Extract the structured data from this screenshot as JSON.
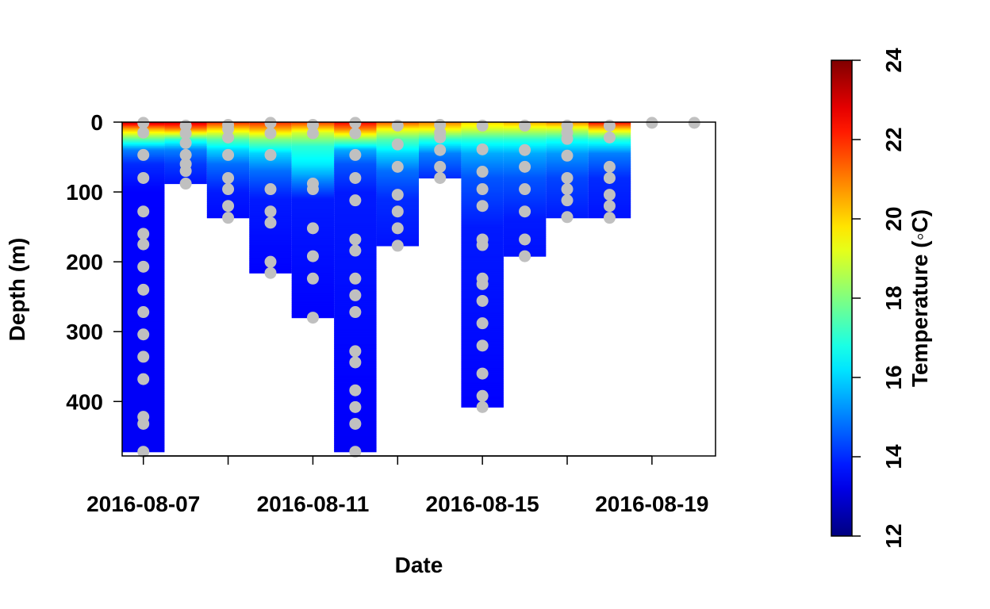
{
  "chart_data": {
    "type": "heatmap",
    "title": "",
    "xlabel": "Date",
    "ylabel": "Depth (m)",
    "x_ticks": [
      "2016-08-07",
      "2016-08-11",
      "2016-08-15",
      "2016-08-19"
    ],
    "y_ticks": [
      "0",
      "100",
      "200",
      "300",
      "400"
    ],
    "colorbar": {
      "label": "Temperature (◦C)",
      "ticks": [
        "12",
        "14",
        "16",
        "18",
        "20",
        "22",
        "24"
      ],
      "range": [
        12,
        24
      ],
      "colormap": "jet"
    },
    "xlim": [
      "2016-08-06.5",
      "2016-08-20.5"
    ],
    "ylim": [
      0,
      478
    ],
    "columns": [
      {
        "date": "2016-08-07",
        "max_depth": 472,
        "temp_profile": [
          [
            0,
            23.2
          ],
          [
            10,
            20.5
          ],
          [
            25,
            17.5
          ],
          [
            40,
            15.0
          ],
          [
            60,
            14.0
          ],
          [
            100,
            13.5
          ],
          [
            472,
            13.4
          ]
        ]
      },
      {
        "date": "2016-08-08",
        "max_depth": 88,
        "temp_profile": [
          [
            0,
            23.0
          ],
          [
            10,
            21.0
          ],
          [
            25,
            17.0
          ],
          [
            40,
            15.0
          ],
          [
            60,
            14.2
          ],
          [
            88,
            13.7
          ]
        ]
      },
      {
        "date": "2016-08-09",
        "max_depth": 137,
        "temp_profile": [
          [
            0,
            22.0
          ],
          [
            10,
            20.0
          ],
          [
            25,
            17.5
          ],
          [
            40,
            16.0
          ],
          [
            60,
            14.8
          ],
          [
            100,
            13.8
          ],
          [
            137,
            13.6
          ]
        ]
      },
      {
        "date": "2016-08-10",
        "max_depth": 216,
        "temp_profile": [
          [
            0,
            22.0
          ],
          [
            10,
            20.5
          ],
          [
            25,
            18.0
          ],
          [
            45,
            16.0
          ],
          [
            70,
            14.8
          ],
          [
            110,
            13.8
          ],
          [
            216,
            13.5
          ]
        ]
      },
      {
        "date": "2016-08-11",
        "max_depth": 280,
        "temp_profile": [
          [
            0,
            21.8
          ],
          [
            15,
            19.0
          ],
          [
            35,
            17.0
          ],
          [
            60,
            16.3
          ],
          [
            85,
            15.0
          ],
          [
            110,
            13.8
          ],
          [
            280,
            13.5
          ]
        ]
      },
      {
        "date": "2016-08-12",
        "max_depth": 472,
        "temp_profile": [
          [
            0,
            22.5
          ],
          [
            10,
            21.0
          ],
          [
            25,
            18.0
          ],
          [
            40,
            15.5
          ],
          [
            60,
            14.5
          ],
          [
            100,
            13.8
          ],
          [
            472,
            13.4
          ]
        ]
      },
      {
        "date": "2016-08-13",
        "max_depth": 177,
        "temp_profile": [
          [
            0,
            21.5
          ],
          [
            10,
            19.5
          ],
          [
            25,
            17.5
          ],
          [
            45,
            16.0
          ],
          [
            70,
            14.8
          ],
          [
            110,
            14.0
          ],
          [
            177,
            13.7
          ]
        ]
      },
      {
        "date": "2016-08-14",
        "max_depth": 80,
        "temp_profile": [
          [
            0,
            21.0
          ],
          [
            10,
            19.5
          ],
          [
            25,
            17.0
          ],
          [
            45,
            15.0
          ],
          [
            80,
            14.0
          ]
        ]
      },
      {
        "date": "2016-08-15",
        "max_depth": 408,
        "temp_profile": [
          [
            0,
            20.0
          ],
          [
            10,
            19.0
          ],
          [
            25,
            17.0
          ],
          [
            45,
            15.5
          ],
          [
            80,
            14.5
          ],
          [
            150,
            13.8
          ],
          [
            408,
            13.5
          ]
        ]
      },
      {
        "date": "2016-08-16",
        "max_depth": 192,
        "temp_profile": [
          [
            0,
            20.5
          ],
          [
            10,
            19.0
          ],
          [
            25,
            17.0
          ],
          [
            45,
            15.5
          ],
          [
            80,
            14.5
          ],
          [
            140,
            13.8
          ],
          [
            192,
            13.7
          ]
        ]
      },
      {
        "date": "2016-08-17",
        "max_depth": 137,
        "temp_profile": [
          [
            0,
            21.0
          ],
          [
            10,
            19.0
          ],
          [
            25,
            16.8
          ],
          [
            45,
            15.3
          ],
          [
            80,
            14.3
          ],
          [
            137,
            13.8
          ]
        ]
      },
      {
        "date": "2016-08-18",
        "max_depth": 137,
        "temp_profile": [
          [
            0,
            22.5
          ],
          [
            10,
            20.0
          ],
          [
            25,
            17.0
          ],
          [
            45,
            15.0
          ],
          [
            80,
            14.0
          ],
          [
            137,
            13.7
          ]
        ]
      }
    ],
    "sample_points": [
      {
        "date": "2016-08-07",
        "depths": [
          1,
          15,
          47,
          80,
          128,
          160,
          175,
          207,
          240,
          272,
          304,
          336,
          368,
          422,
          432,
          472
        ]
      },
      {
        "date": "2016-08-08",
        "depths": [
          5,
          16,
          30,
          47,
          60,
          70,
          88
        ]
      },
      {
        "date": "2016-08-09",
        "depths": [
          4,
          10,
          22,
          47,
          80,
          96,
          120,
          137
        ]
      },
      {
        "date": "2016-08-10",
        "depths": [
          1,
          16,
          47,
          96,
          128,
          144,
          200,
          216
        ]
      },
      {
        "date": "2016-08-11",
        "depths": [
          4,
          16,
          88,
          96,
          152,
          192,
          224,
          280
        ]
      },
      {
        "date": "2016-08-12",
        "depths": [
          1,
          16,
          47,
          80,
          112,
          168,
          184,
          224,
          248,
          272,
          328,
          344,
          384,
          408,
          432,
          472
        ]
      },
      {
        "date": "2016-08-13",
        "depths": [
          5,
          32,
          64,
          104,
          128,
          152,
          177
        ]
      },
      {
        "date": "2016-08-14",
        "depths": [
          4,
          15,
          22,
          40,
          64,
          80
        ]
      },
      {
        "date": "2016-08-15",
        "depths": [
          5,
          39,
          71,
          96,
          120,
          168,
          176,
          224,
          232,
          256,
          288,
          320,
          360,
          392,
          408
        ]
      },
      {
        "date": "2016-08-16",
        "depths": [
          5,
          40,
          64,
          96,
          128,
          168,
          192
        ]
      },
      {
        "date": "2016-08-17",
        "depths": [
          5,
          15,
          24,
          48,
          80,
          96,
          112,
          136
        ]
      },
      {
        "date": "2016-08-18",
        "depths": [
          5,
          22,
          64,
          80,
          104,
          120,
          137
        ]
      },
      {
        "date": "2016-08-19",
        "depths": [
          1
        ]
      },
      {
        "date": "2016-08-20",
        "depths": [
          1
        ]
      }
    ],
    "point_color": "#c0c0c0",
    "frame_color": "#000000"
  }
}
